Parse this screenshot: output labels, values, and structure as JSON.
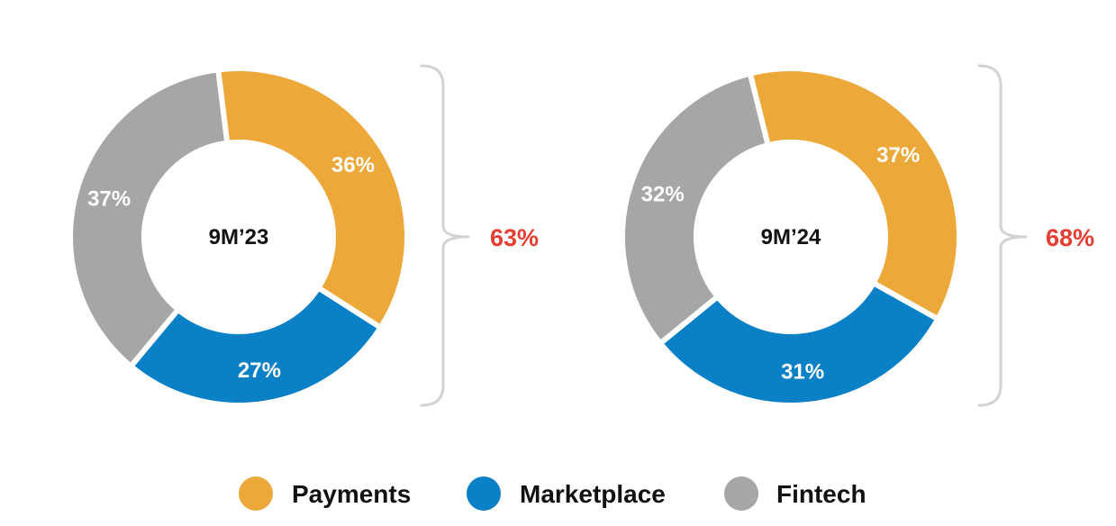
{
  "colors": {
    "payments": "#EDA83A",
    "marketplace": "#0A80C6",
    "fintech": "#A6A6A6",
    "bracket": "#D3D3D3",
    "highlight": "#E53E31"
  },
  "legend": [
    {
      "name": "Payments",
      "color_key": "payments"
    },
    {
      "name": "Marketplace",
      "color_key": "marketplace"
    },
    {
      "name": "Fintech",
      "color_key": "fintech"
    }
  ],
  "chart_data": [
    {
      "type": "pie",
      "title": "9M’23",
      "categories": [
        "Payments",
        "Marketplace",
        "Fintech"
      ],
      "values": [
        36,
        27,
        37
      ],
      "labels": [
        "36%",
        "27%",
        "37%"
      ],
      "bracket_label": "63%"
    },
    {
      "type": "pie",
      "title": "9M’24",
      "categories": [
        "Payments",
        "Marketplace",
        "Fintech"
      ],
      "values": [
        37,
        31,
        32
      ],
      "labels": [
        "37%",
        "31%",
        "32%"
      ],
      "bracket_label": "68%"
    }
  ]
}
